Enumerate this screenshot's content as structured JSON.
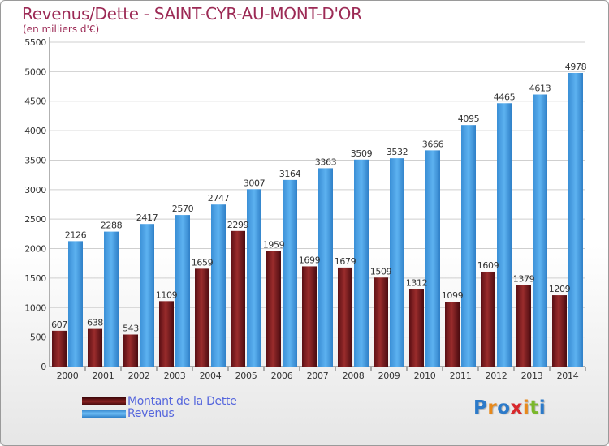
{
  "chart_data": {
    "type": "bar",
    "title": "Revenus/Dette - SAINT-CYR-AU-MONT-D'OR",
    "subtitle": "(en milliers d'€)",
    "categories": [
      "2000",
      "2001",
      "2002",
      "2003",
      "2004",
      "2005",
      "2006",
      "2007",
      "2008",
      "2009",
      "2010",
      "2011",
      "2012",
      "2013",
      "2014"
    ],
    "series": [
      {
        "name": "Montant de la Dette",
        "color": "#7a1f1f",
        "values": [
          607,
          638,
          543,
          1109,
          1659,
          2299,
          1959,
          1699,
          1679,
          1509,
          1312,
          1099,
          1609,
          1379,
          1209
        ],
        "labels": [
          "607",
          "638",
          "543",
          "1109",
          "1659",
          "2299",
          "1959",
          "1699",
          "1679",
          "1509",
          "1312",
          "1099",
          "1609",
          "1379",
          "1209"
        ]
      },
      {
        "name": "Revenus",
        "color": "#4aa3e8",
        "values": [
          2126,
          2288,
          2417,
          2570,
          2747,
          3007,
          3164,
          3363,
          3509,
          3532,
          3666,
          4095,
          4465,
          4613,
          4978
        ],
        "labels": [
          "2126",
          "2288",
          "2417",
          "2570",
          "2747",
          "3007",
          "3164",
          "3363",
          "3509",
          "3532",
          "3666",
          "4095",
          "4465",
          "4613",
          "4978"
        ]
      }
    ],
    "yticks": [
      0,
      500,
      1000,
      1500,
      2000,
      2500,
      3000,
      3500,
      4000,
      4500,
      5000,
      5500
    ],
    "ylim": [
      0,
      5500
    ],
    "grid": true,
    "legend_position": "bottom-left"
  },
  "legend": {
    "debt_label": "Montant de la Dette",
    "revenue_label": "Revenus"
  },
  "logo": {
    "letters": [
      "P",
      "r",
      "o",
      "x",
      "i",
      "t",
      "i"
    ],
    "colors": [
      "#2c7ac9",
      "#e8891a",
      "#2c7ac9",
      "#d8282c",
      "#e8891a",
      "#7ab82a",
      "#2c7ac9"
    ]
  }
}
